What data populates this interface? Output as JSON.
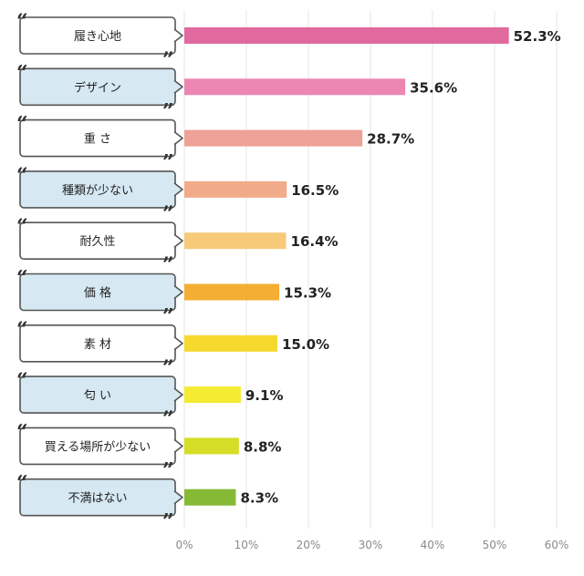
{
  "chart_data": {
    "type": "bar",
    "orientation": "horizontal",
    "categories": [
      "履き心地",
      "デザイン",
      "重 さ",
      "種類が少ない",
      "耐久性",
      "価 格",
      "素 材",
      "匂 い",
      "買える場所が少ない",
      "不満はない"
    ],
    "values": [
      52.3,
      35.6,
      28.7,
      16.5,
      16.4,
      15.3,
      15.0,
      9.1,
      8.8,
      8.3
    ],
    "value_labels": [
      "52.3%",
      "35.6%",
      "28.7%",
      "16.5%",
      "16.4%",
      "15.3%",
      "15.0%",
      "9.1%",
      "8.8%",
      "8.3%"
    ],
    "bar_colors": [
      "#e0699e",
      "#ec86b3",
      "#eea196",
      "#f2ab88",
      "#f7ca7a",
      "#f3ae33",
      "#f6d92d",
      "#f3ec31",
      "#d5dd26",
      "#86b936"
    ],
    "label_box_fills": [
      "#ffffff",
      "#d6e8f2",
      "#ffffff",
      "#d6e8f2",
      "#ffffff",
      "#d6e8f2",
      "#ffffff",
      "#d6e8f2",
      "#ffffff",
      "#d6e8f2"
    ],
    "x_ticks": [
      "0%",
      "10%",
      "20%",
      "30%",
      "40%",
      "50%",
      "60%"
    ],
    "xlim": [
      0,
      60
    ],
    "grid": "vertical",
    "title": "",
    "xlabel": "",
    "ylabel": ""
  }
}
